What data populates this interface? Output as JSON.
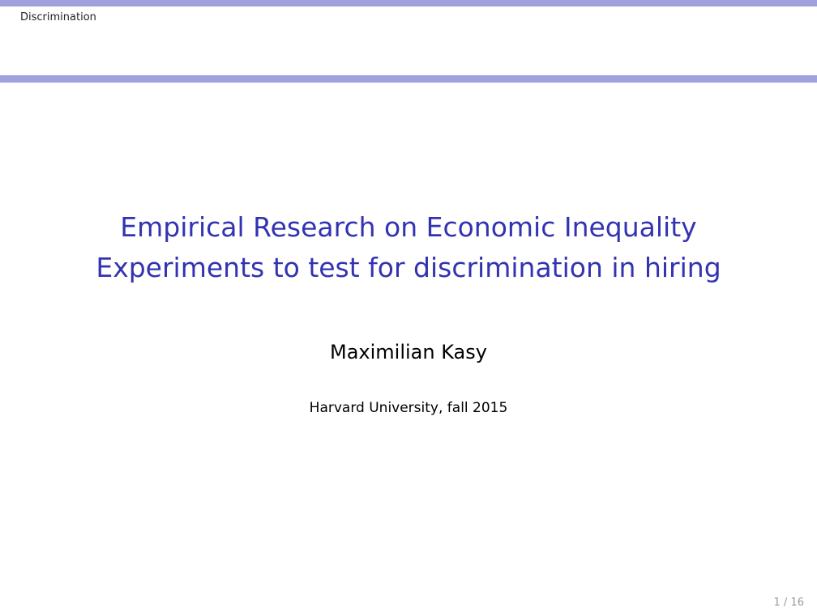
{
  "header": {
    "section_label": "Discrimination"
  },
  "title": {
    "line1": "Empirical Research on Economic Inequality",
    "line2": "Experiments to test for discrimination in hiring"
  },
  "author": "Maximilian Kasy",
  "affiliation": "Harvard University, fall 2015",
  "footer": {
    "page_number": "1 / 16"
  },
  "colors": {
    "accent_bar": "#a0a0dd",
    "title_text": "#3333b2",
    "page_number_text": "#999999"
  }
}
